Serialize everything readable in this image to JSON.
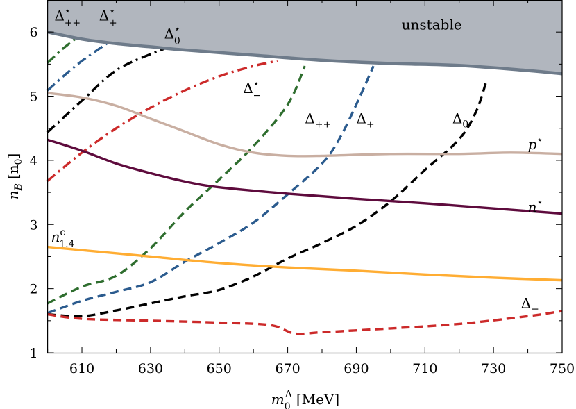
{
  "chart_data": {
    "type": "line",
    "xlabel": {
      "base": "m",
      "sup": "Δ",
      "sub": "0",
      "unit": "[MeV]"
    },
    "ylabel": {
      "base": "n",
      "sub": "B",
      "unit": "[n",
      "unit_sub": "0",
      "unit_end": "]"
    },
    "xlim": [
      600,
      750
    ],
    "ylim": [
      1,
      6.5
    ],
    "xticks": [
      610,
      630,
      650,
      670,
      690,
      710,
      730,
      750
    ],
    "yticks": [
      1,
      2,
      3,
      4,
      5,
      6
    ],
    "grid": false,
    "region": {
      "label": "unstable",
      "color": "#b1b6be",
      "edge_color": "#6e7b8a",
      "boundary": {
        "x": [
          600,
          610,
          620,
          630,
          640,
          660,
          680,
          700,
          720,
          740,
          750
        ],
        "y": [
          6.0,
          5.89,
          5.82,
          5.77,
          5.72,
          5.64,
          5.56,
          5.51,
          5.48,
          5.4,
          5.35
        ]
      }
    },
    "series": [
      {
        "label": {
          "base": "Δ",
          "sup": "⋆",
          "sub": "++"
        },
        "color": "#2f6e2f",
        "style": "dashdot",
        "x": [
          600,
          604,
          608
        ],
        "y": [
          5.52,
          5.72,
          5.89
        ]
      },
      {
        "label": {
          "base": "Δ",
          "sup": "⋆",
          "sub": "+"
        },
        "color": "#2b5b8e",
        "style": "dashdot",
        "x": [
          600,
          605,
          610,
          617.5
        ],
        "y": [
          5.09,
          5.33,
          5.55,
          5.83
        ]
      },
      {
        "label": {
          "base": "Δ",
          "sup": "⋆",
          "sub": "0"
        },
        "color": "#000000",
        "style": "dashdot",
        "x": [
          600,
          610,
          620.5,
          634
        ],
        "y": [
          4.44,
          4.93,
          5.42,
          5.74
        ]
      },
      {
        "label": {
          "base": "Δ",
          "sup": "⋆",
          "sub": "−"
        },
        "color": "#cc2a2a",
        "style": "dashdot",
        "x": [
          600,
          610,
          620,
          630,
          640,
          650,
          660,
          667
        ],
        "y": [
          3.68,
          4.12,
          4.5,
          4.82,
          5.09,
          5.31,
          5.47,
          5.55
        ]
      },
      {
        "label": {
          "base": "Δ",
          "sup": "",
          "sub": "++"
        },
        "color": "#2f6e2f",
        "style": "dashed",
        "x": [
          600,
          610,
          620,
          630,
          640,
          650,
          660,
          670,
          675
        ],
        "y": [
          1.77,
          2.03,
          2.2,
          2.63,
          3.2,
          3.7,
          4.22,
          4.87,
          5.47
        ]
      },
      {
        "label": {
          "base": "Δ",
          "sup": "",
          "sub": "+"
        },
        "color": "#2b5b8e",
        "style": "dashed",
        "x": [
          600,
          610,
          620,
          630,
          640,
          650,
          660,
          670,
          680,
          685,
          690,
          695
        ],
        "y": [
          1.62,
          1.81,
          1.95,
          2.1,
          2.42,
          2.71,
          3.03,
          3.47,
          3.95,
          4.33,
          4.87,
          5.47
        ]
      },
      {
        "label": {
          "base": "Δ",
          "sup": "",
          "sub": "0"
        },
        "color": "#000000",
        "style": "dashed",
        "x": [
          600,
          610,
          620,
          630,
          640,
          650,
          660,
          670,
          680,
          690,
          700,
          710,
          720,
          725,
          728
        ],
        "y": [
          1.6,
          1.57,
          1.66,
          1.77,
          1.88,
          1.98,
          2.19,
          2.47,
          2.71,
          2.98,
          3.36,
          3.85,
          4.33,
          4.77,
          5.25
        ]
      },
      {
        "label": {
          "base": "Δ",
          "sup": "",
          "sub": "−"
        },
        "color": "#cc2a2a",
        "style": "dashed",
        "x": [
          600,
          610,
          630,
          650,
          665,
          672,
          680,
          700,
          720,
          740,
          750
        ],
        "y": [
          1.6,
          1.53,
          1.5,
          1.47,
          1.43,
          1.3,
          1.32,
          1.38,
          1.45,
          1.57,
          1.65
        ]
      },
      {
        "label": {
          "base": "p",
          "sup": "⋆",
          "sub": ""
        },
        "color": "#c9afa2",
        "style": "solid",
        "x": [
          600,
          610,
          620,
          630,
          640,
          650,
          660,
          670,
          680,
          700,
          720,
          735,
          750
        ],
        "y": [
          5.05,
          4.98,
          4.85,
          4.65,
          4.45,
          4.25,
          4.12,
          4.07,
          4.07,
          4.1,
          4.1,
          4.12,
          4.1
        ]
      },
      {
        "label": {
          "base": "n",
          "sup": "⋆",
          "sub": ""
        },
        "color": "#5e0b3d",
        "style": "solid",
        "x": [
          600,
          610,
          620,
          630,
          640,
          650,
          670,
          690,
          710,
          730,
          750
        ],
        "y": [
          4.32,
          4.15,
          3.95,
          3.8,
          3.67,
          3.58,
          3.48,
          3.4,
          3.33,
          3.25,
          3.17
        ]
      },
      {
        "label": {
          "base": "n",
          "sup": "c",
          "sub": "1.4"
        },
        "color": "#ffad33",
        "style": "solid",
        "x": [
          600,
          610,
          630,
          650,
          670,
          690,
          710,
          730,
          750
        ],
        "y": [
          2.65,
          2.6,
          2.5,
          2.4,
          2.33,
          2.28,
          2.22,
          2.17,
          2.13
        ]
      }
    ]
  }
}
